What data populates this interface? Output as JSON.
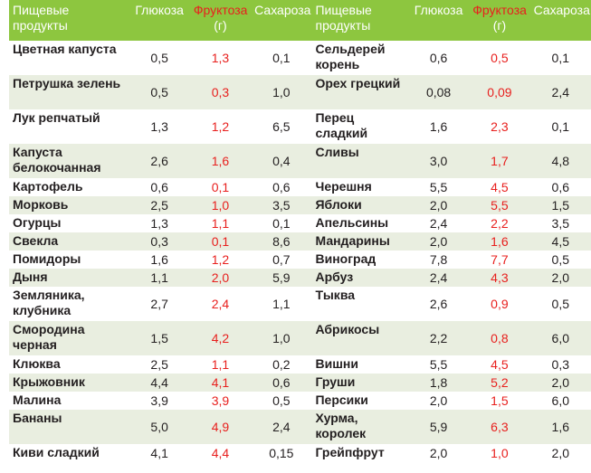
{
  "header": {
    "name_line1": "Пищевые",
    "name_line2": "продукты",
    "glucose": "Глюкоза",
    "fructose_line1": "Фруктоза",
    "fructose_line2": "(г)",
    "sucrose": "Сахароза"
  },
  "rows": [
    {
      "l_name": "Цветная капуста",
      "l_g": "0,5",
      "l_f": "1,3",
      "l_s": "0,1",
      "r_name": "Сельдерей корень",
      "r_g": "0,6",
      "r_f": "0,5",
      "r_s": "0,1"
    },
    {
      "l_name": "Петрушка зелень",
      "l_g": "0,5",
      "l_f": "0,3",
      "l_s": "1,0",
      "r_name": "Орех грецкий",
      "r_g": "0,08",
      "r_f": "0,09",
      "r_s": "2,4"
    },
    {
      "l_name": "Лук репчатый",
      "l_g": "1,3",
      "l_f": "1,2",
      "l_s": "6,5",
      "r_name": "Перец сладкий",
      "r_g": "1,6",
      "r_f": "2,3",
      "r_s": "0,1"
    },
    {
      "l_name": "Капуста белокочанная",
      "l_g": "2,6",
      "l_f": "1,6",
      "l_s": "0,4",
      "r_name": "Сливы",
      "r_g": "3,0",
      "r_f": "1,7",
      "r_s": "4,8"
    },
    {
      "l_name": "Картофель",
      "l_g": "0,6",
      "l_f": "0,1",
      "l_s": "0,6",
      "r_name": "Черешня",
      "r_g": "5,5",
      "r_f": "4,5",
      "r_s": "0,6"
    },
    {
      "l_name": "Морковь",
      "l_g": "2,5",
      "l_f": "1,0",
      "l_s": "3,5",
      "r_name": "Яблоки",
      "r_g": "2,0",
      "r_f": "5,5",
      "r_s": "1,5"
    },
    {
      "l_name": "Огурцы",
      "l_g": "1,3",
      "l_f": "1,1",
      "l_s": "0,1",
      "r_name": "Апельсины",
      "r_g": "2,4",
      "r_f": "2,2",
      "r_s": "3,5"
    },
    {
      "l_name": "Свекла",
      "l_g": "0,3",
      "l_f": "0,1",
      "l_s": "8,6",
      "r_name": "Мандарины",
      "r_g": "2,0",
      "r_f": "1,6",
      "r_s": "4,5"
    },
    {
      "l_name": "Помидоры",
      "l_g": "1,6",
      "l_f": "1,2",
      "l_s": "0,7",
      "r_name": "Виноград",
      "r_g": "7,8",
      "r_f": "7,7",
      "r_s": "0,5"
    },
    {
      "l_name": "Дыня",
      "l_g": "1,1",
      "l_f": "2,0",
      "l_s": "5,9",
      "r_name": "Арбуз",
      "r_g": "2,4",
      "r_f": "4,3",
      "r_s": "2,0"
    },
    {
      "l_name": "Земляника, клубника",
      "l_g": "2,7",
      "l_f": "2,4",
      "l_s": "1,1",
      "r_name": "Тыква",
      "r_g": "2,6",
      "r_f": "0,9",
      "r_s": "0,5"
    },
    {
      "l_name": "Смородина черная",
      "l_g": "1,5",
      "l_f": "4,2",
      "l_s": "1,0",
      "r_name": "Абрикосы",
      "r_g": "2,2",
      "r_f": "0,8",
      "r_s": "6,0"
    },
    {
      "l_name": "Клюква",
      "l_g": "2,5",
      "l_f": "1,1",
      "l_s": "0,2",
      "r_name": "Вишни",
      "r_g": "5,5",
      "r_f": "4,5",
      "r_s": "0,3"
    },
    {
      "l_name": "Крыжовник",
      "l_g": "4,4",
      "l_f": "4,1",
      "l_s": "0,6",
      "r_name": "Груши",
      "r_g": "1,8",
      "r_f": "5,2",
      "r_s": "2,0"
    },
    {
      "l_name": "Малина",
      "l_g": "3,9",
      "l_f": "3,9",
      "l_s": "0,5",
      "r_name": "Персики",
      "r_g": "2,0",
      "r_f": "1,5",
      "r_s": "6,0"
    },
    {
      "l_name": "Бананы",
      "l_g": "5,0",
      "l_f": "4,9",
      "l_s": "2,4",
      "r_name": "Хурма, королек",
      "r_g": "5,9",
      "r_f": "6,3",
      "r_s": "1,6"
    },
    {
      "l_name": "Киви сладкий",
      "l_g": "4,1",
      "l_f": "4,4",
      "l_s": "0,15",
      "r_name": "Грейпфрут",
      "r_g": "2,0",
      "r_f": "1,0",
      "r_s": "2,0"
    }
  ]
}
